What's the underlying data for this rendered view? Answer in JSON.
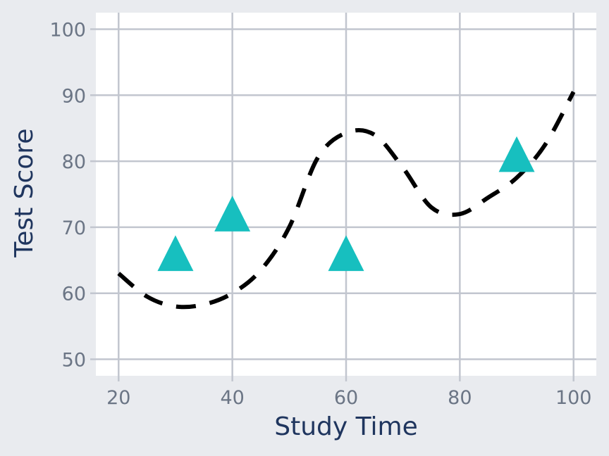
{
  "chart_data": {
    "type": "scatter",
    "xlabel": "Study Time",
    "ylabel": "Test Score",
    "xlim": [
      16,
      104
    ],
    "ylim": [
      47.5,
      102.5
    ],
    "xticks": [
      20,
      40,
      60,
      80,
      100
    ],
    "yticks": [
      50,
      60,
      70,
      80,
      90,
      100
    ],
    "grid": true,
    "series": [
      {
        "kind": "scatter",
        "marker": "triangle",
        "color": "#17bfbf",
        "x": [
          30,
          40,
          60,
          90
        ],
        "y": [
          66,
          72,
          66,
          81
        ]
      },
      {
        "kind": "line",
        "style": "dashed",
        "color": "#000000",
        "x": [
          20,
          25,
          30,
          35,
          40,
          45,
          50,
          55,
          60,
          65,
          70,
          75,
          80,
          85,
          90,
          95,
          100
        ],
        "y": [
          63,
          59.5,
          58,
          58.3,
          60,
          63.5,
          70,
          80.5,
          84.3,
          84,
          79,
          73,
          72,
          74.5,
          77.5,
          82.5,
          90.5
        ]
      }
    ]
  }
}
